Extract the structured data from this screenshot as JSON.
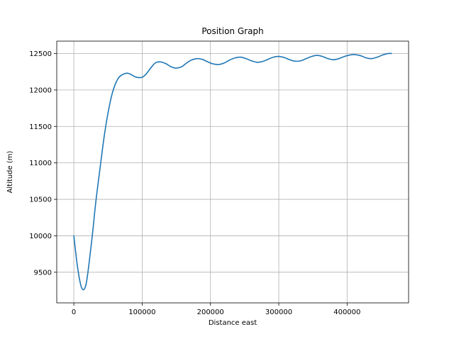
{
  "chart_data": {
    "type": "line",
    "title": "Position Graph",
    "xlabel": "Distance east",
    "ylabel": "Altitude (m)",
    "xlim": [
      -25000,
      490000
    ],
    "ylim": [
      9080,
      12670
    ],
    "xticks": [
      0,
      100000,
      200000,
      300000,
      400000
    ],
    "xtick_labels": [
      "0",
      "100000",
      "200000",
      "300000",
      "400000"
    ],
    "yticks": [
      9500,
      10000,
      10500,
      11000,
      11500,
      12000,
      12500
    ],
    "ytick_labels": [
      "9500",
      "10000",
      "10500",
      "11000",
      "11500",
      "12000",
      "12500"
    ],
    "grid": true,
    "series_color": "#1f77b4",
    "series": [
      {
        "x": [
          0,
          5000,
          10000,
          14000,
          18000,
          22000,
          27000,
          32000,
          38000,
          45000,
          52000,
          58000,
          65000,
          72000,
          78000,
          82000,
          86000,
          90000,
          95000,
          100000,
          105000,
          110000,
          115000,
          120000,
          127000,
          135000,
          142000,
          150000,
          158000,
          165000,
          172000,
          180000,
          188000,
          195000,
          203000,
          212000,
          220000,
          228000,
          236000,
          244000,
          252000,
          260000,
          268000,
          276000,
          284000,
          292000,
          300000,
          308000,
          316000,
          324000,
          332000,
          340000,
          348000,
          356000,
          364000,
          372000,
          380000,
          388000,
          396000,
          404000,
          412000,
          420000,
          428000,
          436000,
          444000,
          452000,
          460000,
          465000
        ],
        "y": [
          10000,
          9600,
          9330,
          9260,
          9340,
          9600,
          10000,
          10450,
          10900,
          11400,
          11780,
          12010,
          12160,
          12215,
          12230,
          12220,
          12200,
          12180,
          12170,
          12175,
          12210,
          12270,
          12330,
          12375,
          12385,
          12360,
          12320,
          12300,
          12320,
          12370,
          12410,
          12430,
          12420,
          12390,
          12360,
          12350,
          12370,
          12410,
          12440,
          12450,
          12430,
          12400,
          12380,
          12390,
          12420,
          12450,
          12460,
          12445,
          12415,
          12395,
          12400,
          12430,
          12460,
          12475,
          12460,
          12430,
          12415,
          12430,
          12460,
          12480,
          12485,
          12470,
          12440,
          12430,
          12450,
          12480,
          12500,
          12500
        ]
      }
    ]
  }
}
